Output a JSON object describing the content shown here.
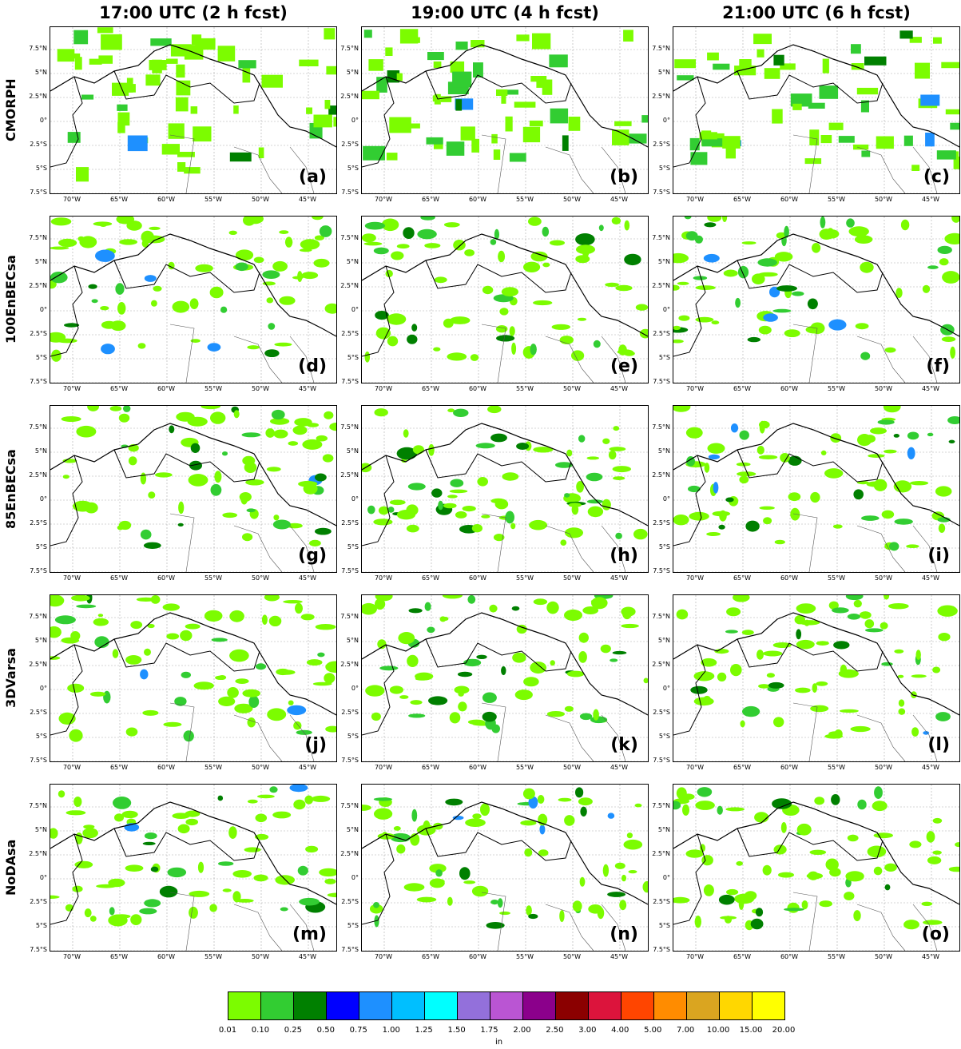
{
  "columns": [
    "17:00 UTC (2 h fcst)",
    "19:00 UTC (4 h fcst)",
    "21:00 UTC (6 h fcst)"
  ],
  "rows": [
    "CMORPH",
    "100EnBECsa",
    "85EnBECsa",
    "3DVarsa",
    "NoDAsa"
  ],
  "panel_letters": [
    "(a)",
    "(b)",
    "(c)",
    "(d)",
    "(e)",
    "(f)",
    "(g)",
    "(h)",
    "(i)",
    "(j)",
    "(k)",
    "(l)",
    "(m)",
    "(n)",
    "(o)"
  ],
  "lat_labels": [
    "7.5°N",
    "5°N",
    "2.5°N",
    "0°",
    "2.5°S",
    "5°S",
    "7.5°S"
  ],
  "lon_labels": [
    "70°W",
    "65°W",
    "60°W",
    "55°W",
    "50°W",
    "45°W"
  ],
  "colorbar": {
    "unit": "in",
    "ticks": [
      "0.01",
      "0.10",
      "0.25",
      "0.50",
      "0.75",
      "1.00",
      "1.25",
      "1.50",
      "1.75",
      "2.00",
      "2.50",
      "3.00",
      "4.00",
      "5.00",
      "7.00",
      "10.00",
      "15.00",
      "20.00"
    ],
    "colors": [
      "#7cfc00",
      "#32cd32",
      "#008000",
      "#0000ff",
      "#1e90ff",
      "#00bfff",
      "#00ffff",
      "#9370db",
      "#ba55d3",
      "#8b008b",
      "#8b0000",
      "#dc143c",
      "#ff4500",
      "#ff8c00",
      "#daa520",
      "#ffd700",
      "#ffff00"
    ]
  }
}
